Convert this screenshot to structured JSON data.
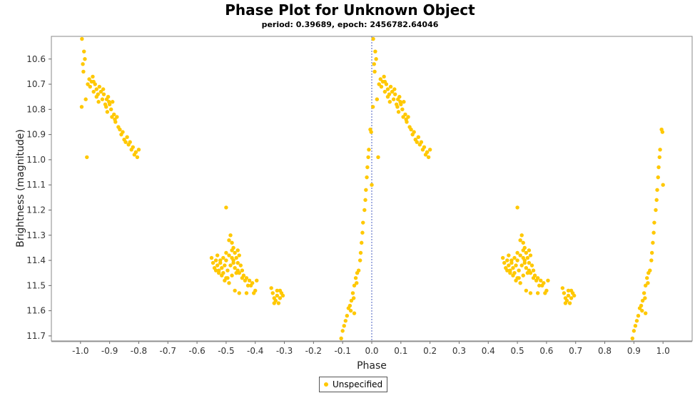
{
  "chart_data": {
    "type": "scatter",
    "title": "Phase Plot for Unknown Object",
    "subtitle": "period: 0.39689, epoch: 2456782.64046",
    "xlabel": "Phase",
    "ylabel": "Brightness (magnitude)",
    "xlim": [
      -1.1,
      1.1
    ],
    "ylim": [
      10.51,
      11.72
    ],
    "y_inverted": true,
    "x_ticks": [
      "-1.0",
      "-0.9",
      "-0.8",
      "-0.7",
      "-0.6",
      "-0.5",
      "-0.4",
      "-0.3",
      "-0.2",
      "-0.1",
      "0.0",
      "0.1",
      "0.2",
      "0.3",
      "0.4",
      "0.5",
      "0.6",
      "0.7",
      "0.8",
      "0.9",
      "1.0"
    ],
    "y_ticks": [
      "10.6",
      "10.7",
      "10.8",
      "10.9",
      "11.0",
      "11.1",
      "11.2",
      "11.3",
      "11.4",
      "11.5",
      "11.6",
      "11.7"
    ],
    "marker_color": "#FFC800",
    "reference_line_x": 0.0,
    "legend": {
      "placement": "bottom-center",
      "entries": [
        "Unspecified"
      ]
    },
    "series": [
      {
        "name": "Unspecified",
        "points": [
          [
            0.005,
            10.52
          ],
          [
            0.012,
            10.57
          ],
          [
            0.015,
            10.6
          ],
          [
            0.008,
            10.62
          ],
          [
            0.01,
            10.65
          ],
          [
            0.004,
            10.79
          ],
          [
            0.018,
            10.76
          ],
          [
            0.025,
            10.7
          ],
          [
            0.03,
            10.68
          ],
          [
            0.033,
            10.71
          ],
          [
            0.038,
            10.69
          ],
          [
            0.042,
            10.67
          ],
          [
            0.045,
            10.73
          ],
          [
            0.05,
            10.7
          ],
          [
            0.055,
            10.72
          ],
          [
            0.06,
            10.74
          ],
          [
            0.065,
            10.71
          ],
          [
            0.07,
            10.73
          ],
          [
            0.075,
            10.76
          ],
          [
            0.08,
            10.74
          ],
          [
            0.085,
            10.78
          ],
          [
            0.09,
            10.76
          ],
          [
            0.095,
            10.75
          ],
          [
            0.1,
            10.78
          ],
          [
            0.105,
            10.8
          ],
          [
            0.11,
            10.77
          ],
          [
            0.115,
            10.82
          ],
          [
            0.12,
            10.85
          ],
          [
            0.125,
            10.83
          ],
          [
            0.13,
            10.87
          ],
          [
            0.14,
            10.9
          ],
          [
            0.145,
            10.89
          ],
          [
            0.15,
            10.92
          ],
          [
            0.16,
            10.91
          ],
          [
            0.165,
            10.94
          ],
          [
            0.17,
            10.93
          ],
          [
            0.175,
            10.96
          ],
          [
            0.18,
            10.95
          ],
          [
            0.19,
            10.97
          ],
          [
            0.195,
            10.99
          ],
          [
            0.2,
            10.96
          ],
          [
            0.045,
            10.69
          ],
          [
            0.055,
            10.75
          ],
          [
            0.062,
            10.77
          ],
          [
            0.078,
            10.72
          ],
          [
            0.088,
            10.79
          ],
          [
            0.092,
            10.81
          ],
          [
            0.098,
            10.77
          ],
          [
            0.108,
            10.83
          ],
          [
            0.118,
            10.84
          ],
          [
            0.135,
            10.88
          ],
          [
            0.155,
            10.93
          ],
          [
            0.185,
            10.98
          ],
          [
            0.022,
            10.99
          ],
          [
            0.5,
            11.19
          ],
          [
            0.45,
            11.39
          ],
          [
            0.455,
            11.41
          ],
          [
            0.46,
            11.43
          ],
          [
            0.465,
            11.4
          ],
          [
            0.47,
            11.42
          ],
          [
            0.475,
            11.44
          ],
          [
            0.48,
            11.41
          ],
          [
            0.485,
            11.43
          ],
          [
            0.49,
            11.45
          ],
          [
            0.495,
            11.42
          ],
          [
            0.5,
            11.4
          ],
          [
            0.505,
            11.44
          ],
          [
            0.51,
            11.38
          ],
          [
            0.515,
            11.42
          ],
          [
            0.52,
            11.36
          ],
          [
            0.525,
            11.4
          ],
          [
            0.53,
            11.43
          ],
          [
            0.535,
            11.39
          ],
          [
            0.54,
            11.41
          ],
          [
            0.545,
            11.45
          ],
          [
            0.55,
            11.42
          ],
          [
            0.555,
            11.47
          ],
          [
            0.56,
            11.46
          ],
          [
            0.565,
            11.48
          ],
          [
            0.57,
            11.47
          ],
          [
            0.575,
            11.5
          ],
          [
            0.58,
            11.48
          ],
          [
            0.59,
            11.49
          ],
          [
            0.6,
            11.52
          ],
          [
            0.605,
            11.48
          ],
          [
            0.515,
            11.3
          ],
          [
            0.52,
            11.33
          ],
          [
            0.525,
            11.35
          ],
          [
            0.51,
            11.32
          ],
          [
            0.53,
            11.37
          ],
          [
            0.535,
            11.45
          ],
          [
            0.505,
            11.47
          ],
          [
            0.495,
            11.48
          ],
          [
            0.485,
            11.46
          ],
          [
            0.475,
            11.45
          ],
          [
            0.465,
            11.44
          ],
          [
            0.545,
            11.38
          ],
          [
            0.54,
            11.36
          ],
          [
            0.52,
            11.46
          ],
          [
            0.51,
            11.49
          ],
          [
            0.5,
            11.47
          ],
          [
            0.53,
            11.52
          ],
          [
            0.545,
            11.53
          ],
          [
            0.57,
            11.53
          ],
          [
            0.585,
            11.5
          ],
          [
            0.595,
            11.53
          ],
          [
            0.49,
            11.39
          ],
          [
            0.48,
            11.4
          ],
          [
            0.47,
            11.38
          ],
          [
            0.5,
            11.37
          ],
          [
            0.525,
            11.41
          ],
          [
            0.54,
            11.44
          ],
          [
            0.555,
            11.44
          ],
          [
            0.52,
            11.39
          ],
          [
            0.655,
            11.51
          ],
          [
            0.66,
            11.53
          ],
          [
            0.665,
            11.55
          ],
          [
            0.67,
            11.56
          ],
          [
            0.675,
            11.54
          ],
          [
            0.68,
            11.57
          ],
          [
            0.685,
            11.55
          ],
          [
            0.69,
            11.53
          ],
          [
            0.695,
            11.54
          ],
          [
            0.675,
            11.52
          ],
          [
            0.665,
            11.57
          ],
          [
            0.685,
            11.52
          ],
          [
            0.895,
            11.71
          ],
          [
            0.9,
            11.68
          ],
          [
            0.905,
            11.66
          ],
          [
            0.91,
            11.64
          ],
          [
            0.915,
            11.62
          ],
          [
            0.92,
            11.59
          ],
          [
            0.925,
            11.58
          ],
          [
            0.93,
            11.56
          ],
          [
            0.935,
            11.53
          ],
          [
            0.938,
            11.55
          ],
          [
            0.94,
            11.5
          ],
          [
            0.945,
            11.47
          ],
          [
            0.948,
            11.49
          ],
          [
            0.95,
            11.45
          ],
          [
            0.955,
            11.44
          ],
          [
            0.96,
            11.4
          ],
          [
            0.962,
            11.37
          ],
          [
            0.965,
            11.33
          ],
          [
            0.968,
            11.29
          ],
          [
            0.97,
            11.25
          ],
          [
            0.975,
            11.2
          ],
          [
            0.978,
            11.16
          ],
          [
            0.98,
            11.12
          ],
          [
            0.983,
            11.07
          ],
          [
            0.985,
            11.03
          ],
          [
            0.988,
            10.99
          ],
          [
            0.99,
            10.96
          ],
          [
            0.995,
            10.88
          ],
          [
            0.998,
            10.89
          ],
          [
            1.0,
            11.1
          ],
          [
            0.94,
            11.61
          ],
          [
            0.928,
            11.6
          ]
        ]
      }
    ]
  },
  "legend_label": "Unspecified"
}
